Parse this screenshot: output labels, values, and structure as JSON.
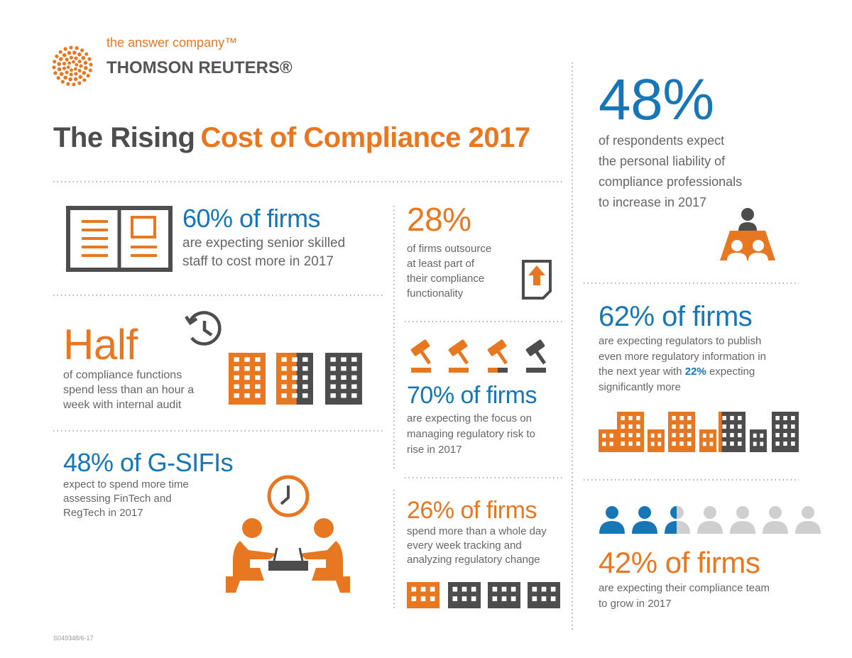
{
  "brand": {
    "tagline": "the answer company™",
    "name": "THOMSON REUTERS®"
  },
  "title": {
    "lead": "The Rising",
    "highlight": "Cost of Compliance 2017"
  },
  "stats": [
    {
      "headline": "48%",
      "lines": [
        "of respondents expect",
        "the personal liability of",
        "compliance professionals",
        "to increase in 2017"
      ]
    },
    {
      "headline": "60% of firms",
      "lines": [
        "are expecting senior skilled",
        "staff to cost more in 2017"
      ]
    },
    {
      "headline": "28%",
      "lines": [
        "of firms outsource",
        "at least part of",
        "their compliance",
        "functionality"
      ]
    },
    {
      "headline": "Half",
      "lines": [
        "of compliance functions",
        "spend less than an hour a",
        "week with internal audit"
      ]
    },
    {
      "headline": "62% of firms",
      "lines": [
        "are expecting regulators to publish",
        "even more regulatory information in"
      ],
      "mid_pre": "the next year with",
      "emphasis": "22%",
      "mid_post": "expecting",
      "last": "significantly more"
    },
    {
      "headline": "70% of firms",
      "lines": [
        "are expecting the focus on",
        "managing regulatory risk to",
        "rise in 2017"
      ]
    },
    {
      "headline": "48% of G-SIFIs",
      "lines": [
        "expect to spend more time",
        "assessing FinTech and",
        "RegTech in 2017"
      ]
    },
    {
      "headline": "26% of firms",
      "lines": [
        "spend more than a whole day",
        "every week tracking and",
        "analyzing regulatory change"
      ]
    },
    {
      "headline": "42% of firms",
      "lines": [
        "are expecting their compliance team",
        "to grow in 2017"
      ]
    }
  ],
  "footer_code": "S049348/6-17"
}
